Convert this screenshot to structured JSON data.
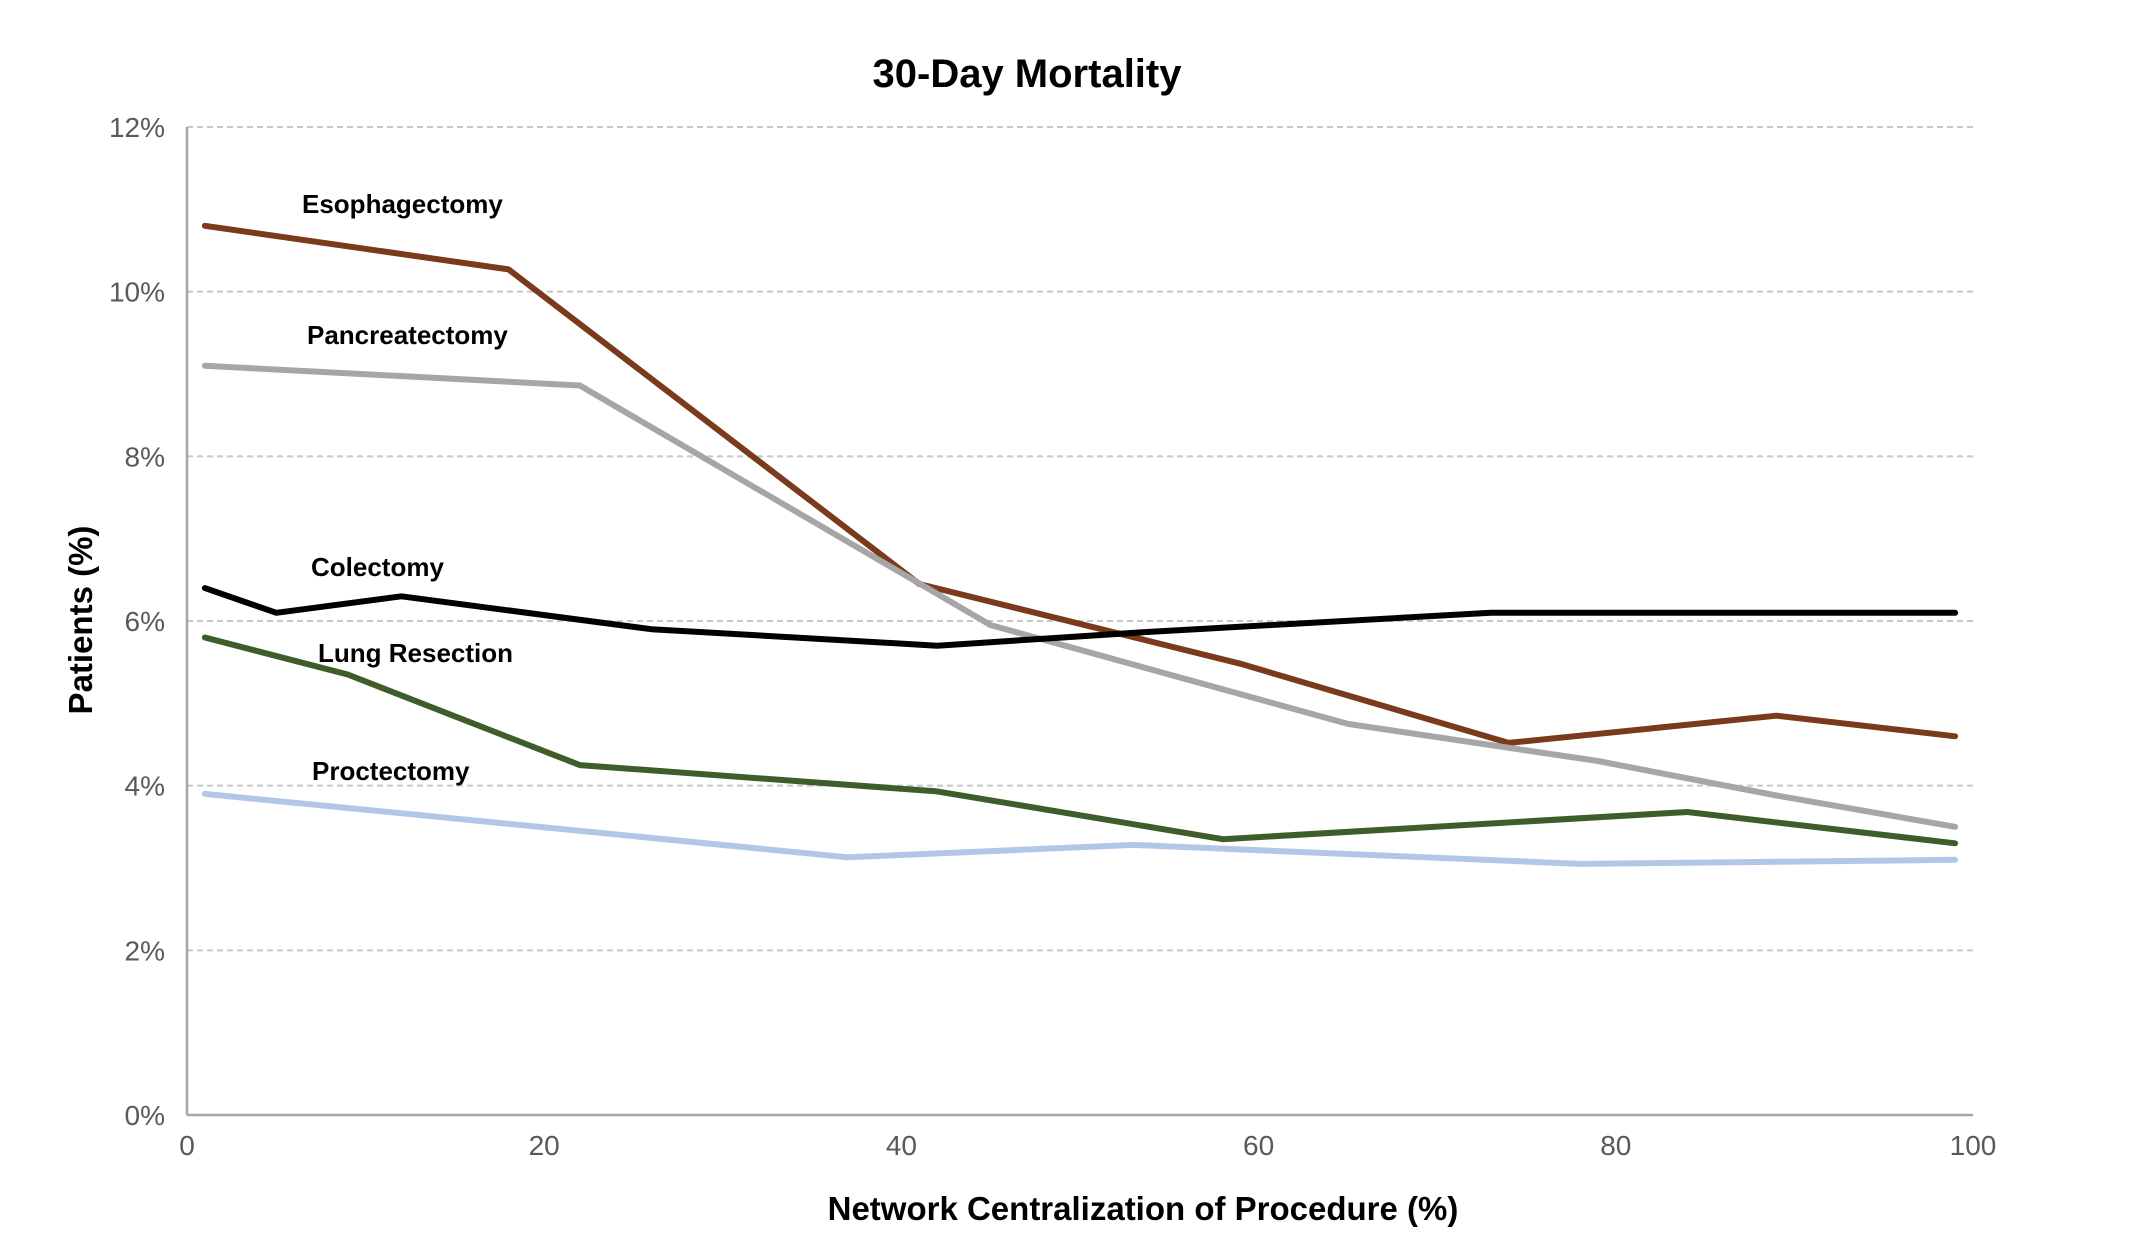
{
  "chart_data": {
    "type": "line",
    "title": "30-Day Mortality",
    "xlabel": "Network Centralization of Procedure (%)",
    "ylabel": "Patients (%)",
    "xlim": [
      0,
      100
    ],
    "ylim": [
      0,
      12
    ],
    "x_ticks": [
      0,
      20,
      40,
      60,
      80,
      100
    ],
    "y_ticks": [
      0,
      2,
      4,
      6,
      8,
      10,
      12
    ],
    "y_tick_labels": [
      "0%",
      "2%",
      "4%",
      "6%",
      "8%",
      "10%",
      "12%"
    ],
    "grid": true,
    "legend": "none (series labeled directly on plot)",
    "series": [
      {
        "name": "Esophagectomy",
        "color": "#7b3a1c",
        "points": [
          [
            1,
            10.8
          ],
          [
            18,
            10.27
          ],
          [
            41,
            6.45
          ],
          [
            59,
            5.48
          ],
          [
            74,
            4.52
          ],
          [
            89,
            4.85
          ],
          [
            99,
            4.6
          ]
        ]
      },
      {
        "name": "Pancreatectomy",
        "color": "#a6a6a6",
        "points": [
          [
            1,
            9.1
          ],
          [
            22,
            8.86
          ],
          [
            45,
            5.95
          ],
          [
            65,
            4.75
          ],
          [
            79,
            4.3
          ],
          [
            89,
            3.88
          ],
          [
            99,
            3.5
          ]
        ]
      },
      {
        "name": "Colectomy",
        "color": "#000000",
        "points": [
          [
            1,
            6.4
          ],
          [
            5,
            6.1
          ],
          [
            12,
            6.3
          ],
          [
            26,
            5.9
          ],
          [
            42,
            5.7
          ],
          [
            54,
            5.87
          ],
          [
            73,
            6.1
          ],
          [
            99,
            6.1
          ]
        ]
      },
      {
        "name": "Lung Resection",
        "color": "#3f5c2b",
        "points": [
          [
            1,
            5.8
          ],
          [
            9,
            5.35
          ],
          [
            22,
            4.25
          ],
          [
            42,
            3.93
          ],
          [
            58,
            3.35
          ],
          [
            84,
            3.68
          ],
          [
            99,
            3.3
          ]
        ]
      },
      {
        "name": "Proctectomy",
        "color": "#b4c6e7",
        "points": [
          [
            1,
            3.9
          ],
          [
            37,
            3.13
          ],
          [
            53,
            3.28
          ],
          [
            78,
            3.05
          ],
          [
            99,
            3.1
          ]
        ]
      }
    ]
  }
}
